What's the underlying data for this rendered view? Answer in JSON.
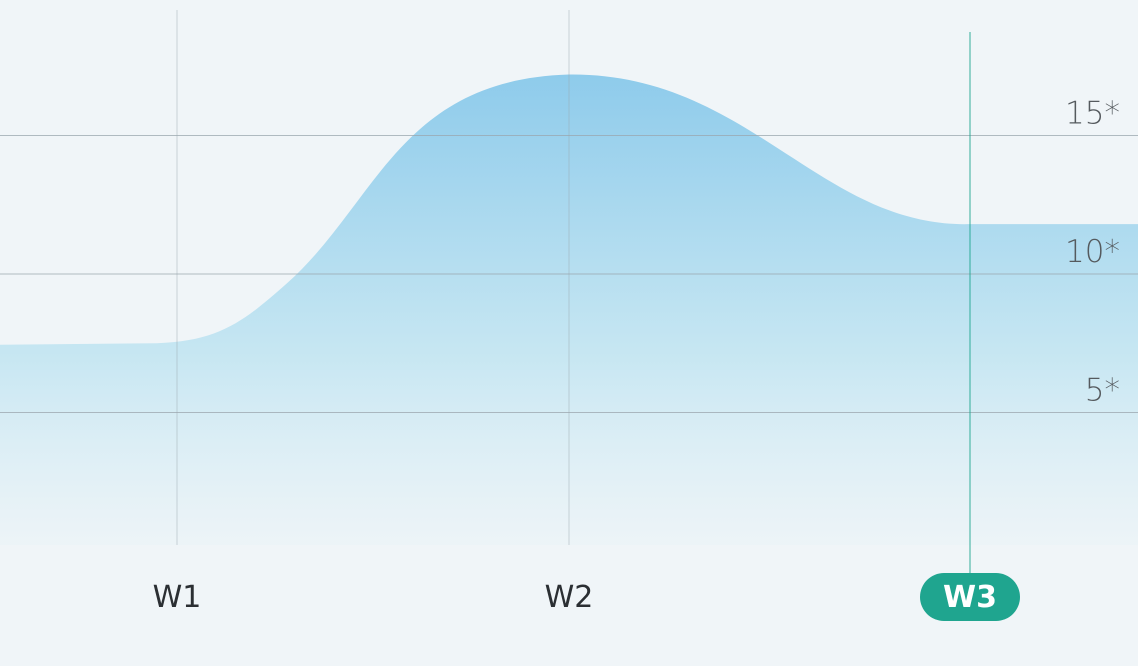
{
  "chart_data": {
    "type": "area",
    "x": [
      "W1",
      "W2",
      "W3"
    ],
    "series": [
      {
        "values": [
          7.5,
          17.2,
          11.8
        ]
      }
    ],
    "y_ticks": [
      "5*",
      "10*",
      "15*"
    ],
    "y_tick_values": [
      5,
      10,
      15
    ],
    "ylim": [
      0,
      20
    ],
    "highlighted_category": "W3",
    "grid": true,
    "colors": {
      "area_top": "#8ecbeb",
      "area_bottom": "#eaf3f7",
      "grid": "#9aa6ae",
      "highlight": "#1fa58f",
      "highlight_label": "#ffffff",
      "background": "#f0f5f8"
    }
  }
}
